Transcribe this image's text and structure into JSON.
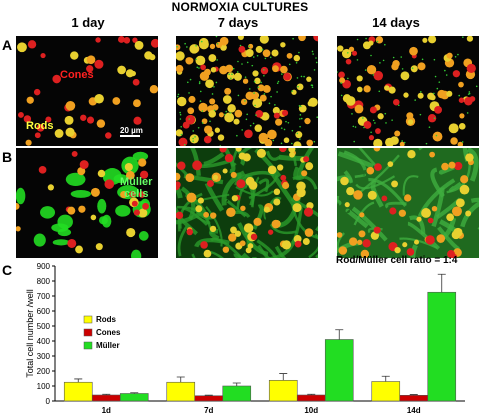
{
  "figure": {
    "title": "NORMOXIA CULTURES",
    "columns": [
      "1 day",
      "7 days",
      "14 days"
    ],
    "panel_labels": [
      "A",
      "B",
      "C"
    ],
    "annotations": {
      "cones": "Cones",
      "rods": "Rods",
      "scale_bar": "20 µm",
      "muller": "Müller\ncells",
      "ratio": "Rod/Müller cell ratio = 1:4"
    },
    "colors": {
      "rods": "#ffff00",
      "cones": "#cc0000",
      "muller": "#22dd22",
      "background_micrograph": "#050505",
      "cones_label": "#ff2020",
      "rods_label": "#ffff40",
      "muller_label": "#66ff66"
    }
  },
  "chart_data": {
    "type": "bar",
    "categories": [
      "1d",
      "7d",
      "10d",
      "14d"
    ],
    "series": [
      {
        "name": "Rods",
        "values": [
          125,
          125,
          138,
          130
        ],
        "errors": [
          22,
          35,
          45,
          35
        ],
        "color": "#ffff00"
      },
      {
        "name": "Cones",
        "values": [
          40,
          35,
          40,
          38
        ],
        "errors": [
          5,
          4,
          5,
          5
        ],
        "color": "#cc0000"
      },
      {
        "name": "Müller",
        "values": [
          50,
          100,
          410,
          725
        ],
        "errors": [
          5,
          20,
          65,
          120
        ],
        "color": "#22dd22"
      }
    ],
    "ylabel": "Total cell number /well",
    "xlabel": "",
    "ylim": [
      0,
      900
    ],
    "yticks": [
      "0",
      "100",
      "200",
      "300",
      "400",
      "500",
      "600",
      "700",
      "800",
      "900"
    ],
    "legend_position": "top-left",
    "grid": false
  }
}
